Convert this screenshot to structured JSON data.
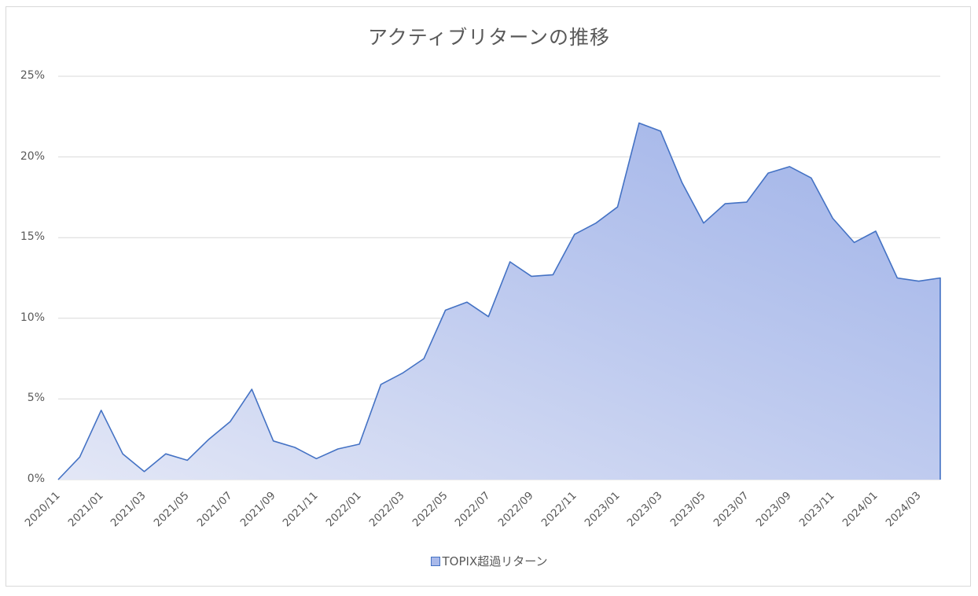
{
  "chart_data": {
    "type": "area",
    "title": "アクティブリターンの推移",
    "xlabel": "",
    "ylabel": "",
    "ylim": [
      0,
      25
    ],
    "y_ticks": [
      "0%",
      "5%",
      "10%",
      "15%",
      "20%",
      "25%"
    ],
    "y_tick_values": [
      0,
      5,
      10,
      15,
      20,
      25
    ],
    "grid": true,
    "legend_position": "bottom",
    "x_tick_labels": [
      "2020/11",
      "2021/01",
      "2021/03",
      "2021/05",
      "2021/07",
      "2021/09",
      "2021/11",
      "2022/01",
      "2022/03",
      "2022/05",
      "2022/07",
      "2022/09",
      "2022/11",
      "2023/01",
      "2023/03",
      "2023/05",
      "2023/07",
      "2023/09",
      "2023/11",
      "2024/01",
      "2024/03"
    ],
    "x": [
      "2020/11",
      "2020/12",
      "2021/01",
      "2021/02",
      "2021/03",
      "2021/04",
      "2021/05",
      "2021/06",
      "2021/07",
      "2021/08",
      "2021/09",
      "2021/10",
      "2021/11",
      "2021/12",
      "2022/01",
      "2022/02",
      "2022/03",
      "2022/04",
      "2022/05",
      "2022/06",
      "2022/07",
      "2022/08",
      "2022/09",
      "2022/10",
      "2022/11",
      "2022/12",
      "2023/01",
      "2023/02",
      "2023/03",
      "2023/04",
      "2023/05",
      "2023/06",
      "2023/07",
      "2023/08",
      "2023/09",
      "2023/10",
      "2023/11",
      "2023/12",
      "2024/01",
      "2024/02",
      "2024/03",
      "2024/04"
    ],
    "series": [
      {
        "name": "TOPIX超過リターン",
        "unit": "%",
        "color": "#4472c4",
        "fill": "#a9b9ea",
        "values": [
          0.0,
          1.4,
          4.3,
          1.6,
          0.5,
          1.6,
          1.2,
          2.5,
          3.6,
          5.6,
          2.4,
          2.0,
          1.3,
          1.9,
          2.2,
          5.9,
          6.6,
          7.5,
          10.5,
          11.0,
          10.1,
          13.5,
          12.6,
          12.7,
          15.2,
          15.9,
          16.9,
          22.1,
          21.6,
          18.4,
          15.9,
          17.1,
          17.2,
          19.0,
          19.4,
          18.7,
          16.2,
          14.7,
          15.4,
          12.5,
          12.3,
          12.5
        ]
      }
    ]
  },
  "legend": {
    "label": "TOPIX超過リターン"
  }
}
